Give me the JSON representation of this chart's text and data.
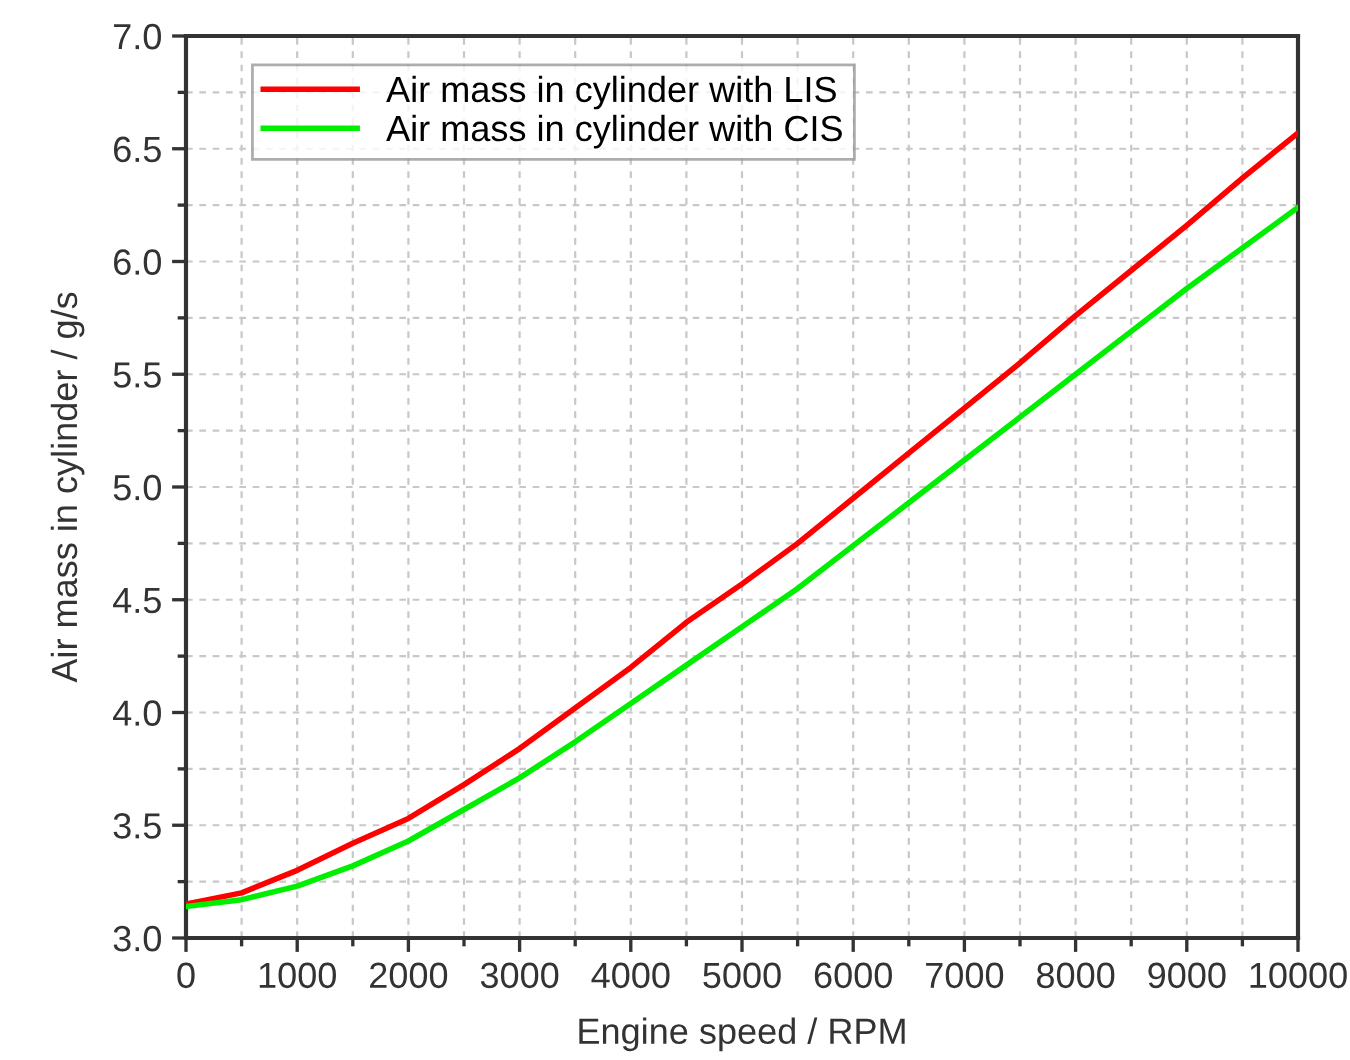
{
  "chart_data": {
    "type": "line",
    "xlabel": "Engine speed / RPM",
    "ylabel": "Air mass in cylinder / g/s",
    "x": [
      0,
      500,
      1000,
      1500,
      2000,
      2500,
      3000,
      3500,
      4000,
      4500,
      5000,
      5500,
      6000,
      6500,
      7000,
      7500,
      8000,
      8500,
      9000,
      9500,
      10000
    ],
    "series": [
      {
        "name": "Air mass in cylinder with LIS",
        "color": "#ff0000",
        "values": [
          3.15,
          3.2,
          3.3,
          3.42,
          3.53,
          3.68,
          3.84,
          4.02,
          4.2,
          4.4,
          4.57,
          4.75,
          4.95,
          5.15,
          5.35,
          5.55,
          5.76,
          5.96,
          6.16,
          6.37,
          6.57
        ]
      },
      {
        "name": "Air mass in cylinder with CIS",
        "color": "#00ee00",
        "values": [
          3.14,
          3.17,
          3.23,
          3.32,
          3.43,
          3.57,
          3.71,
          3.87,
          4.04,
          4.21,
          4.38,
          4.55,
          4.74,
          4.93,
          5.12,
          5.31,
          5.5,
          5.69,
          5.88,
          6.06,
          6.24
        ]
      }
    ],
    "xlim": [
      0,
      10000
    ],
    "xticks": [
      0,
      1000,
      2000,
      3000,
      4000,
      5000,
      6000,
      7000,
      8000,
      9000,
      10000
    ],
    "ylim": [
      3.0,
      7.0
    ],
    "yticks": [
      {
        "value": 3.0,
        "label": "3.0"
      },
      {
        "value": 3.5,
        "label": "3.5"
      },
      {
        "value": 4.0,
        "label": "4.0"
      },
      {
        "value": 4.5,
        "label": "4.5"
      },
      {
        "value": 5.0,
        "label": "5.0"
      },
      {
        "value": 5.5,
        "label": "5.5"
      },
      {
        "value": 6.0,
        "label": "6.0"
      },
      {
        "value": 6.5,
        "label": "6.5"
      },
      {
        "value": 7.0,
        "label": "7.0"
      }
    ],
    "grid": true,
    "legend": "top left",
    "marker": "none",
    "line_style": "solid"
  }
}
